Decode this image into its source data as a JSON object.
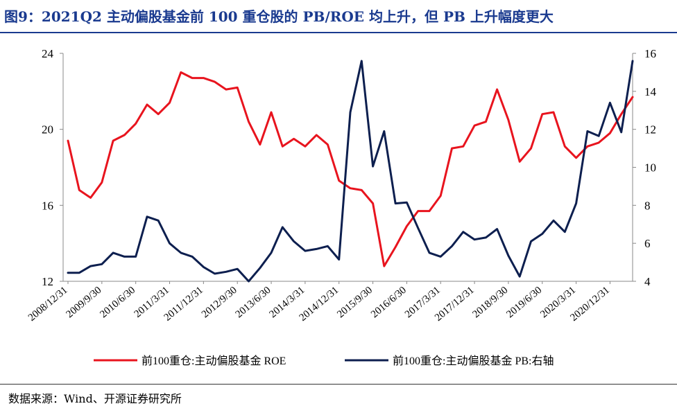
{
  "title": "图9：2021Q2 主动偏股基金前 100 重仓股的 PB/ROE 均上升，但 PB 上升幅度更大",
  "source": "数据来源：Wind、开源证券研究所",
  "chart_data": {
    "type": "line",
    "x": [
      "2008/12/31",
      "2009/3/31",
      "2009/6/30",
      "2009/9/30",
      "2009/12/31",
      "2010/3/31",
      "2010/6/30",
      "2010/9/30",
      "2010/12/31",
      "2011/3/31",
      "2011/6/30",
      "2011/9/30",
      "2011/12/31",
      "2012/3/31",
      "2012/6/30",
      "2012/9/30",
      "2012/12/31",
      "2013/3/31",
      "2013/6/30",
      "2013/9/30",
      "2013/12/31",
      "2014/3/31",
      "2014/6/30",
      "2014/9/30",
      "2014/12/31",
      "2015/3/31",
      "2015/6/30",
      "2015/9/30",
      "2015/12/31",
      "2016/3/31",
      "2016/6/30",
      "2016/9/30",
      "2016/12/31",
      "2017/3/31",
      "2017/6/30",
      "2017/9/30",
      "2017/12/31",
      "2018/3/31",
      "2018/6/30",
      "2018/9/30",
      "2018/12/31",
      "2019/3/31",
      "2019/6/30",
      "2019/9/30",
      "2019/12/31",
      "2020/3/31",
      "2020/6/30",
      "2020/9/30",
      "2020/12/31",
      "2021/3/31",
      "2021/6/30"
    ],
    "x_tick_labels": [
      "2008/12/31",
      "2009/9/30",
      "2010/6/30",
      "2011/3/31",
      "2011/12/31",
      "2012/9/30",
      "2013/6/30",
      "2014/3/31",
      "2014/12/31",
      "2015/9/30",
      "2016/6/30",
      "2017/3/31",
      "2017/12/31",
      "2018/9/30",
      "2019/6/30",
      "2020/3/31",
      "2020/12/31"
    ],
    "y_left": {
      "range": [
        12,
        24
      ],
      "ticks": [
        12,
        16,
        20,
        24
      ]
    },
    "y_right": {
      "range": [
        4,
        16
      ],
      "ticks": [
        4,
        6,
        8,
        10,
        12,
        14,
        16
      ]
    },
    "series": [
      {
        "name": "前100重仓:主动偏股基金 ROE",
        "axis": "left",
        "color": "#e8141e",
        "values": [
          19.4,
          16.8,
          16.4,
          17.2,
          19.4,
          19.7,
          20.3,
          21.3,
          20.8,
          21.4,
          23.0,
          22.7,
          22.7,
          22.5,
          22.1,
          22.2,
          20.4,
          19.2,
          20.9,
          19.1,
          19.5,
          19.1,
          19.7,
          19.2,
          17.3,
          16.9,
          16.8,
          16.1,
          12.8,
          13.8,
          14.9,
          15.7,
          15.7,
          16.5,
          19.0,
          19.1,
          20.2,
          20.4,
          22.1,
          20.5,
          18.3,
          19.0,
          20.8,
          20.9,
          19.1,
          18.5,
          19.1,
          19.3,
          19.8,
          20.8,
          21.7
        ]
      },
      {
        "name": "前100重仓:主动偏股基金 PB:右轴",
        "axis": "right",
        "color": "#0d1f4f",
        "values": [
          4.45,
          4.45,
          4.8,
          4.9,
          5.5,
          5.3,
          5.3,
          7.4,
          7.2,
          6.0,
          5.5,
          5.3,
          4.75,
          4.4,
          4.5,
          4.65,
          4.0,
          4.7,
          5.5,
          6.85,
          6.1,
          5.6,
          5.7,
          5.85,
          5.15,
          12.9,
          15.6,
          10.05,
          11.9,
          8.1,
          8.15,
          6.8,
          5.5,
          5.3,
          5.85,
          6.6,
          6.2,
          6.3,
          6.75,
          5.35,
          4.25,
          6.1,
          6.5,
          7.2,
          6.6,
          8.1,
          11.9,
          11.65,
          13.4,
          11.85,
          15.6
        ]
      }
    ],
    "grid": false,
    "legend": "bottom"
  }
}
